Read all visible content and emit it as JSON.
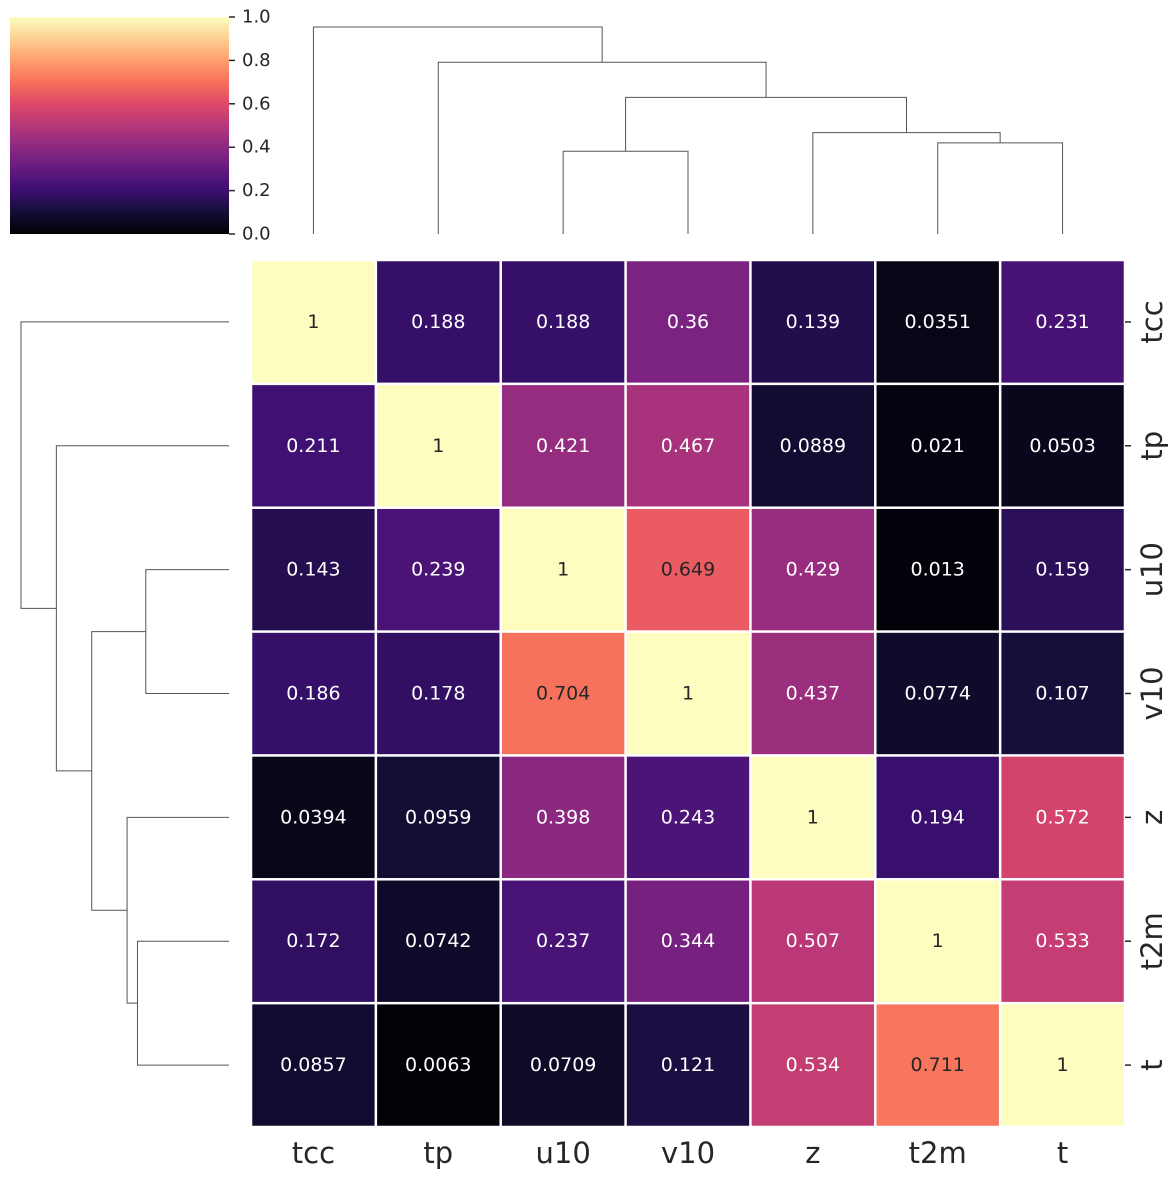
{
  "chart_data": {
    "type": "heatmap",
    "title": "",
    "xlabel": "",
    "ylabel": "",
    "colormap": "magma",
    "vmin": 0,
    "vmax": 1,
    "colorbar_ticks": [
      "0.0",
      "0.2",
      "0.4",
      "0.6",
      "0.8",
      "1.0"
    ],
    "col_labels": [
      "tcc",
      "tp",
      "u10",
      "v10",
      "z",
      "t2m",
      "t"
    ],
    "row_labels": [
      "tcc",
      "tp",
      "u10",
      "v10",
      "z",
      "t2m",
      "t"
    ],
    "values": [
      [
        1,
        0.188,
        0.188,
        0.36,
        0.139,
        0.0351,
        0.231
      ],
      [
        0.211,
        1,
        0.421,
        0.467,
        0.0889,
        0.021,
        0.0503
      ],
      [
        0.143,
        0.239,
        1,
        0.649,
        0.429,
        0.013,
        0.159
      ],
      [
        0.186,
        0.178,
        0.704,
        1,
        0.437,
        0.0774,
        0.107
      ],
      [
        0.0394,
        0.0959,
        0.398,
        0.243,
        1,
        0.194,
        0.572
      ],
      [
        0.172,
        0.0742,
        0.237,
        0.344,
        0.507,
        1,
        0.533
      ],
      [
        0.0857,
        0.0063,
        0.0709,
        0.121,
        0.534,
        0.711,
        1
      ]
    ],
    "value_labels": [
      [
        "1",
        "0.188",
        "0.188",
        "0.36",
        "0.139",
        "0.0351",
        "0.231"
      ],
      [
        "0.211",
        "1",
        "0.421",
        "0.467",
        "0.0889",
        "0.021",
        "0.0503"
      ],
      [
        "0.143",
        "0.239",
        "1",
        "0.649",
        "0.429",
        "0.013",
        "0.159"
      ],
      [
        "0.186",
        "0.178",
        "0.704",
        "1",
        "0.437",
        "0.0774",
        "0.107"
      ],
      [
        "0.0394",
        "0.0959",
        "0.398",
        "0.243",
        "1",
        "0.194",
        "0.572"
      ],
      [
        "0.172",
        "0.0742",
        "0.237",
        "0.344",
        "0.507",
        "1",
        "0.533"
      ],
      [
        "0.0857",
        "0.0063",
        "0.0709",
        "0.121",
        "0.534",
        "0.711",
        "1"
      ]
    ],
    "col_dendrogram": {
      "a": [
        [
          0,
          1
        ],
        [
          4,
          6
        ]
      ],
      "b": [
        [
          2,
          3
        ],
        [
          5,
          6
        ]
      ]
    },
    "row_dendrogram": {
      "a": [
        [
          2,
          3
        ],
        [
          5,
          6
        ]
      ],
      "b": [
        [
          4,
          5
        ],
        [
          5,
          6
        ]
      ]
    },
    "grid": false,
    "legend_position": "top-left"
  }
}
